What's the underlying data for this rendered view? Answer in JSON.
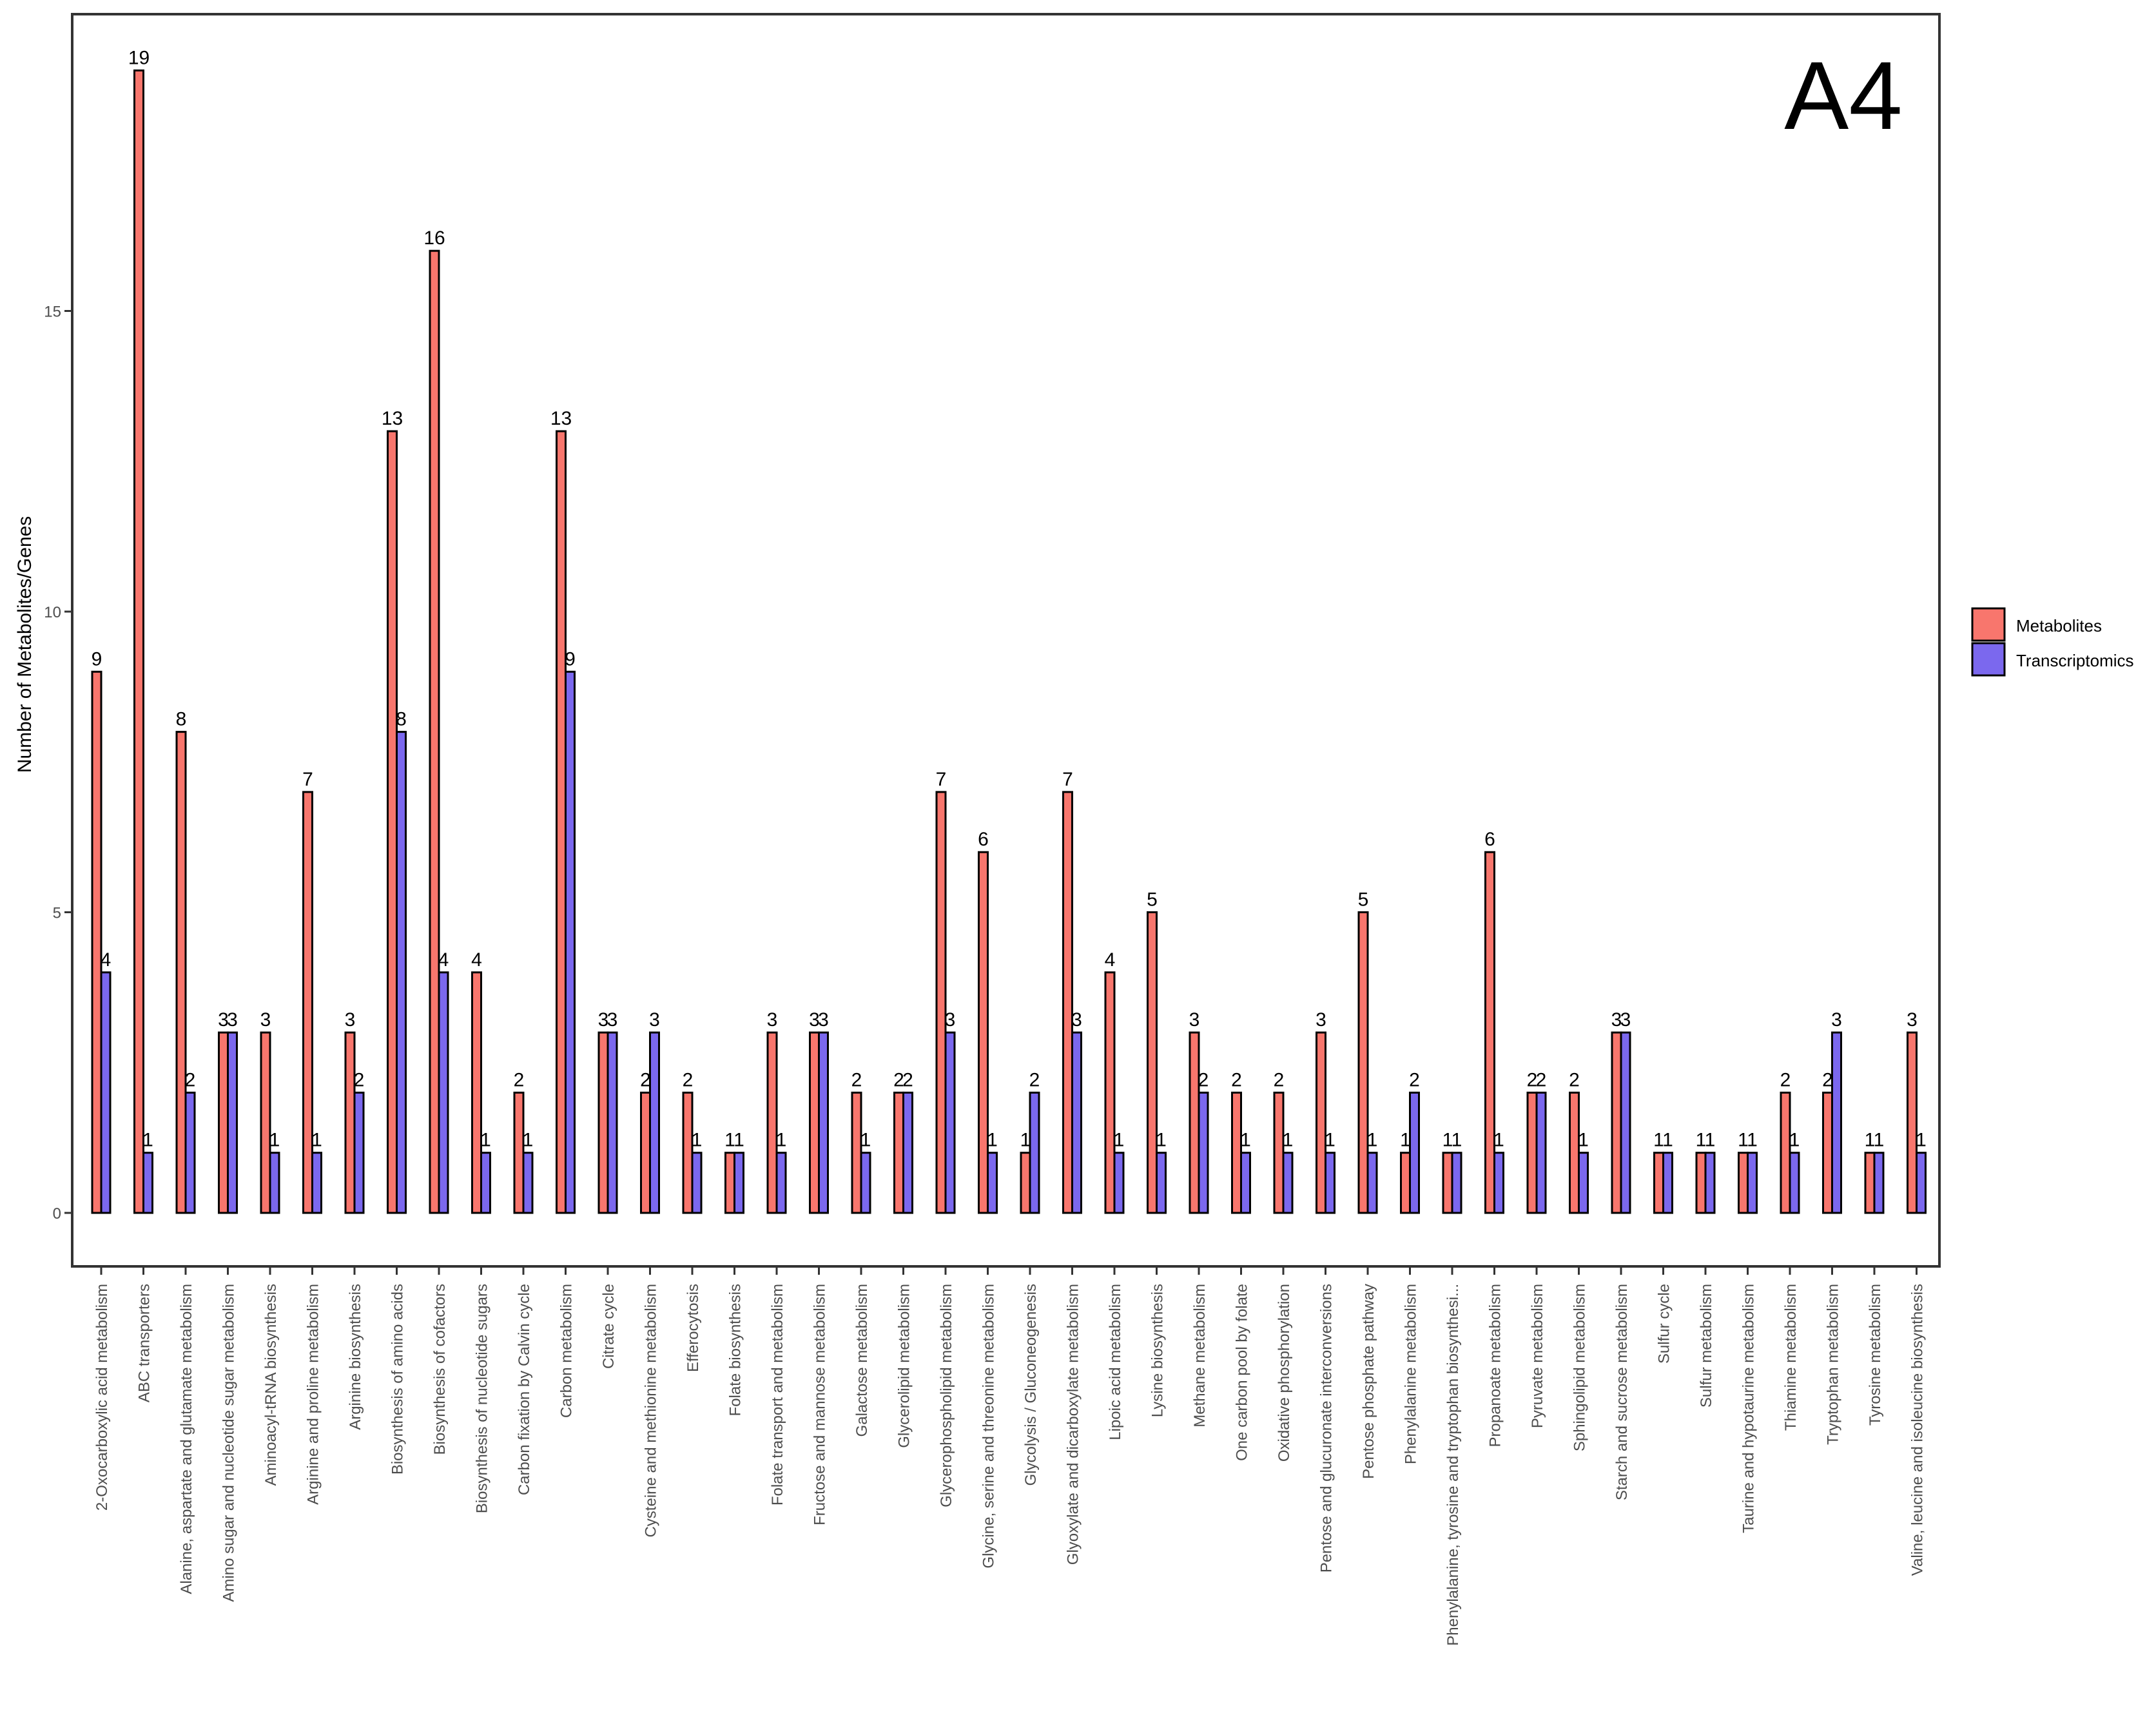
{
  "chart_data": {
    "type": "bar",
    "title": "",
    "panel_tag": "A4",
    "xlabel": "",
    "ylabel": "Number of Metabolites/Genes",
    "ylim": [
      -0.9,
      19.9
    ],
    "yticks": [
      0,
      5,
      10,
      15
    ],
    "grid": false,
    "legend_position": "right",
    "categories": [
      "2-Oxocarboxylic acid metabolism",
      "ABC transporters",
      "Alanine, aspartate and glutamate metabolism",
      "Amino sugar and nucleotide sugar metabolism",
      "Aminoacyl-tRNA biosynthesis",
      "Arginine and proline metabolism",
      "Arginine biosynthesis",
      "Biosynthesis of amino acids",
      "Biosynthesis of cofactors",
      "Biosynthesis of nucleotide sugars",
      "Carbon fixation by Calvin cycle",
      "Carbon metabolism",
      "Citrate cycle",
      "Cysteine and methionine metabolism",
      "Efferocytosis",
      "Folate biosynthesis",
      "Folate transport and metabolism",
      "Fructose and mannose metabolism",
      "Galactose metabolism",
      "Glycerolipid metabolism",
      "Glycerophospholipid metabolism",
      "Glycine, serine and threonine metabolism",
      "Glycolysis / Gluconeogenesis",
      "Glyoxylate and dicarboxylate metabolism",
      "Lipoic acid metabolism",
      "Lysine biosynthesis",
      "Methane metabolism",
      "One carbon pool by folate",
      "Oxidative phosphorylation",
      "Pentose and glucuronate interconversions",
      "Pentose phosphate pathway",
      "Phenylalanine metabolism",
      "Phenylalanine, tyrosine and tryptophan biosynthesi...",
      "Propanoate metabolism",
      "Pyruvate metabolism",
      "Sphingolipid metabolism",
      "Starch and sucrose metabolism",
      "Sulfur cycle",
      "Sulfur metabolism",
      "Taurine and hypotaurine metabolism",
      "Thiamine metabolism",
      "Tryptophan metabolism",
      "Tyrosine metabolism",
      "Valine, leucine and isoleucine biosynthesis"
    ],
    "series": [
      {
        "name": "Metabolites",
        "color": "#F8766D",
        "values": [
          9,
          19,
          8,
          3,
          3,
          7,
          3,
          13,
          16,
          4,
          2,
          13,
          3,
          2,
          2,
          1,
          3,
          3,
          2,
          2,
          7,
          6,
          1,
          7,
          4,
          5,
          3,
          2,
          2,
          3,
          5,
          1,
          1,
          6,
          2,
          2,
          3,
          1,
          1,
          1,
          2,
          2,
          1,
          3
        ]
      },
      {
        "name": "Transcriptomics",
        "color": "#7B68EE",
        "values": [
          4,
          1,
          2,
          3,
          1,
          1,
          2,
          8,
          4,
          1,
          1,
          9,
          3,
          3,
          1,
          1,
          1,
          3,
          1,
          2,
          3,
          1,
          2,
          3,
          1,
          1,
          2,
          1,
          1,
          1,
          1,
          2,
          1,
          1,
          2,
          1,
          3,
          1,
          1,
          1,
          1,
          3,
          1,
          1
        ]
      }
    ]
  },
  "legend": {
    "items": [
      {
        "label": "Metabolites",
        "color": "#F8766D"
      },
      {
        "label": "Transcriptomics",
        "color": "#7B68EE"
      }
    ]
  }
}
